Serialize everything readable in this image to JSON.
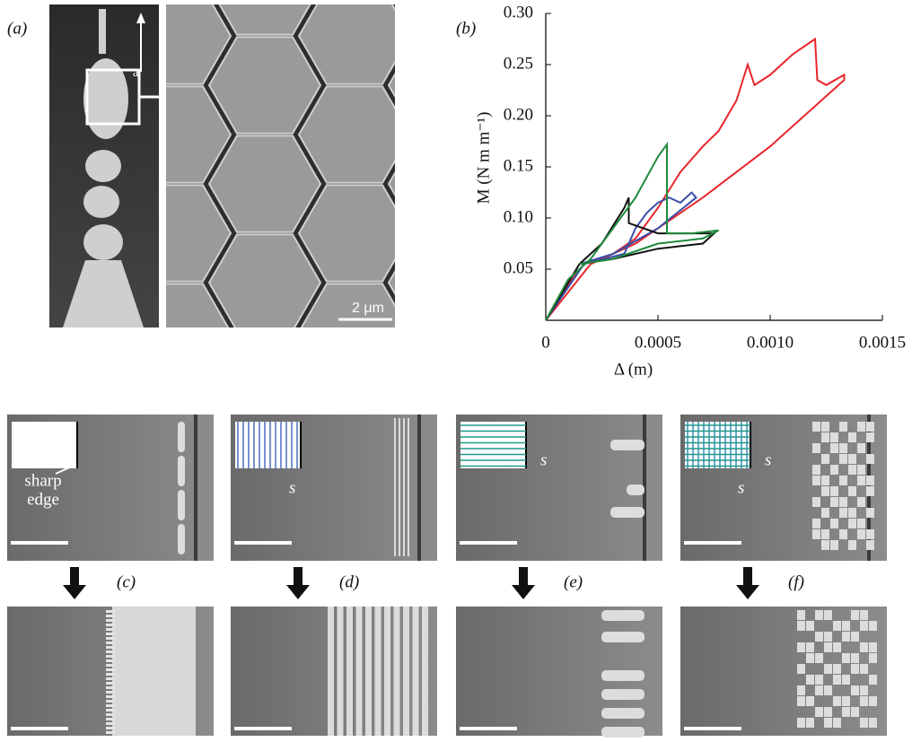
{
  "panel_labels": {
    "a": "(a)",
    "b": "(b)",
    "c": "(c)",
    "d": "(d)",
    "e": "(e)",
    "f": "(f)"
  },
  "annotations": {
    "scale": "2 μm",
    "axis_mark": "a",
    "sharp_edge": [
      "sharp",
      "edge"
    ],
    "spacing": "s"
  },
  "chart_data": {
    "type": "line",
    "x_label": "Δ (m)",
    "y_label": "M (N m m⁻¹)",
    "xlim": [
      0,
      0.0015
    ],
    "xticks": [
      0,
      0.0005,
      {
        "value": 0.001,
        "label": "0.0010"
      },
      0.0015
    ],
    "ylim": [
      0,
      0.3
    ],
    "yticks": [
      0.05,
      {
        "value": 0.1,
        "label": "0.10"
      },
      0.15,
      {
        "value": 0.2,
        "label": "0.20"
      },
      0.25,
      {
        "value": 0.3,
        "label": "0.30"
      }
    ],
    "grid": false,
    "series": [
      {
        "color": "#e8262a",
        "x": [
          0,
          0.0001,
          0.00017,
          0.0003,
          0.0004,
          0.0005,
          0.0006,
          0.0007,
          0.00077,
          0.00085,
          0.0009,
          0.00093,
          0.001,
          0.0011,
          0.0012,
          0.00121,
          0.00125,
          0.00133,
          0.00133,
          0.001,
          0.0007,
          0.0004,
          0.0002,
          0
        ],
        "values": [
          0,
          0.035,
          0.055,
          0.065,
          0.08,
          0.11,
          0.145,
          0.17,
          0.185,
          0.215,
          0.25,
          0.23,
          0.24,
          0.26,
          0.275,
          0.235,
          0.23,
          0.24,
          0.235,
          0.17,
          0.12,
          0.075,
          0.055,
          0
        ]
      },
      {
        "color": "#3a4fa8",
        "x": [
          0,
          0.00017,
          0.00035,
          0.0004,
          0.00045,
          0.0005,
          0.00055,
          0.0006,
          0.00065,
          0.00067,
          0.0005,
          0.0003,
          0.00015
        ],
        "values": [
          0,
          0.055,
          0.065,
          0.09,
          0.105,
          0.115,
          0.12,
          0.115,
          0.125,
          0.12,
          0.09,
          0.065,
          0.055
        ]
      },
      {
        "color": "#111111",
        "x": [
          0,
          0.00015,
          0.00025,
          0.00035,
          0.00037,
          0.00037,
          0.0005,
          0.00065,
          0.00075,
          0.0007,
          0.0005,
          0.0003,
          0.00015
        ],
        "values": [
          0,
          0.055,
          0.075,
          0.11,
          0.12,
          0.095,
          0.085,
          0.085,
          0.085,
          0.075,
          0.07,
          0.06,
          0.055
        ]
      },
      {
        "color": "#1f8a3c",
        "x": [
          0,
          0.0001,
          0.0002,
          0.0003,
          0.0004,
          0.00045,
          0.0005,
          0.00054,
          0.00054,
          0.00065,
          0.00077,
          0.0007,
          0.0005,
          0.0003,
          0.00015
        ],
        "values": [
          0,
          0.04,
          0.06,
          0.09,
          0.12,
          0.14,
          0.16,
          0.172,
          0.085,
          0.085,
          0.088,
          0.08,
          0.075,
          0.06,
          0.055
        ]
      }
    ]
  }
}
